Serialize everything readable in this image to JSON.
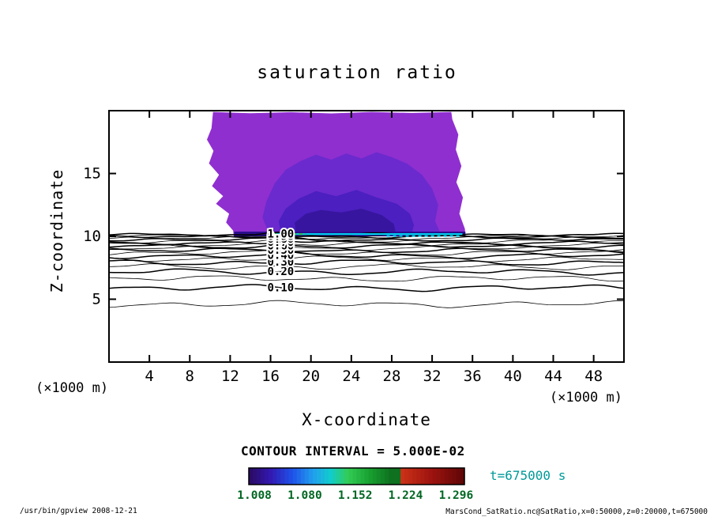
{
  "chart_data": {
    "type": "contour",
    "title": "saturation ratio",
    "xlabel": "X-coordinate",
    "ylabel": "Z-coordinate",
    "x_unit_left": "(×1000 m)",
    "x_unit_right": "(×1000 m)",
    "xlim": [
      0,
      51
    ],
    "zlim": [
      0,
      20
    ],
    "xticks": [
      4,
      8,
      12,
      16,
      20,
      24,
      28,
      32,
      36,
      40,
      44,
      48
    ],
    "zticks": [
      5,
      10,
      15
    ],
    "contour_interval_label": "CONTOUR INTERVAL = 5.000E-02",
    "contour_interval": 0.05,
    "contour_line_labels": [
      "0.10",
      "0.20",
      "0.30",
      "0.40",
      "0.50",
      "0.60",
      "0.70",
      "0.80",
      "0.90",
      "1.00"
    ],
    "label_x_position": 17,
    "time_label": "t=675000 s",
    "colorbar": {
      "ticks": [
        "1.008",
        "1.080",
        "1.152",
        "1.224",
        "1.296"
      ],
      "range": [
        1.0,
        1.308
      ],
      "stops": [
        {
          "t": 0.0,
          "c": "#2A0A60"
        },
        {
          "t": 0.1,
          "c": "#3318B0"
        },
        {
          "t": 0.2,
          "c": "#1E50E8"
        },
        {
          "t": 0.3,
          "c": "#22A0EE"
        },
        {
          "t": 0.38,
          "c": "#11CCCC"
        },
        {
          "t": 0.46,
          "c": "#33CC55"
        },
        {
          "t": 0.56,
          "c": "#18A030"
        },
        {
          "t": 0.66,
          "c": "#0E7020"
        },
        {
          "t": 0.695,
          "c": "#0E7020"
        },
        {
          "t": 0.705,
          "c": "#CC3318"
        },
        {
          "t": 0.84,
          "c": "#A01410"
        },
        {
          "t": 1.0,
          "c": "#5E0606"
        }
      ]
    },
    "filled_region": {
      "note": "supersaturated region (saturation ratio > 1), filled purple",
      "x_range": [
        12.3,
        35.3
      ],
      "z_range": [
        10.0,
        19.9
      ]
    },
    "colors": {
      "fill_levels": [
        "#8F2FD0",
        "#6B2ACD",
        "#4B1FC0",
        "#38159E"
      ],
      "base_strip": "#2B0E8C",
      "cyan_band": "#00CCEE",
      "green_dash": "#33BB55",
      "contour_line": "#000000",
      "colorbar_tick_text": "#006622",
      "time_text": "#009999"
    }
  },
  "footer": {
    "left": "/usr/bin/gpview  2008-12-21",
    "right": "MarsCond_SatRatio.nc@SatRatio,x=0:50000,z=0:20000,t=675000"
  }
}
